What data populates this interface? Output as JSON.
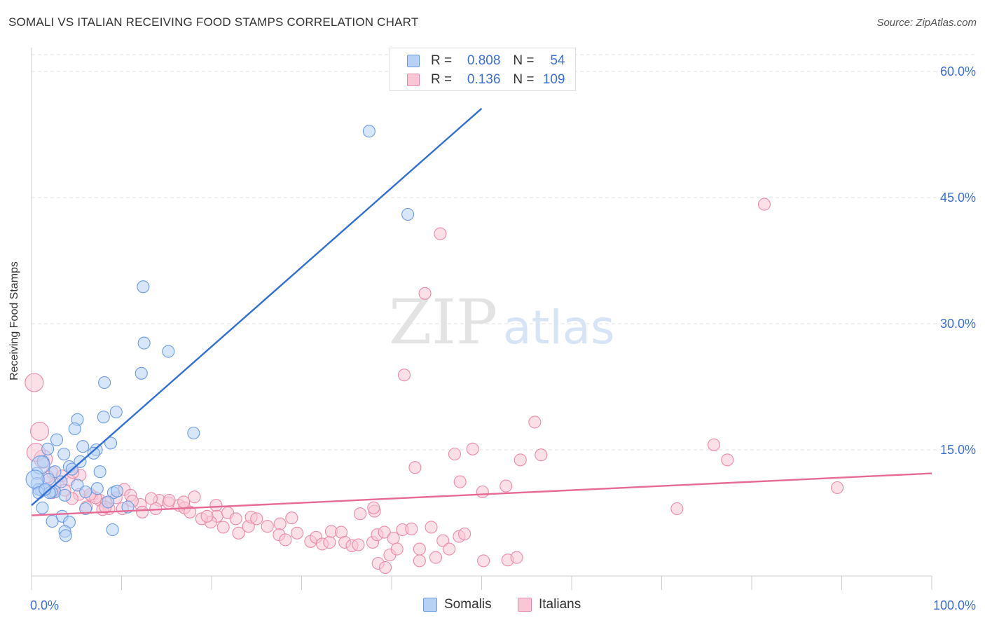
{
  "header": {
    "title": "SOMALI VS ITALIAN RECEIVING FOOD STAMPS CORRELATION CHART",
    "source": "Source: ZipAtlas.com"
  },
  "watermark": {
    "zip": "ZIP",
    "atlas": "atlas"
  },
  "legend": {
    "rows": [
      {
        "r_label": "R =",
        "r_value": "0.808",
        "n_label": "N =",
        "n_value": "54",
        "color": "#6c9be0"
      },
      {
        "r_label": "R =",
        "r_value": "0.136",
        "n_label": "N =",
        "n_value": "109",
        "color": "#ea8aa9"
      }
    ]
  },
  "bottom_legend": [
    "Somalis",
    "Italians"
  ],
  "chart_data": {
    "type": "scatter",
    "title": "SOMALI VS ITALIAN RECEIVING FOOD STAMPS CORRELATION CHART",
    "xlabel": "",
    "ylabel": "Receiving Food Stamps",
    "xlim": [
      0,
      100
    ],
    "ylim": [
      0,
      62
    ],
    "x_tick_labels": [
      "0.0%",
      "100.0%"
    ],
    "y_ticks": [
      15,
      30,
      45,
      60
    ],
    "y_tick_labels": [
      "15.0%",
      "30.0%",
      "45.0%",
      "60.0%"
    ],
    "grid": true,
    "series": [
      {
        "name": "Somalis",
        "color": "#6c9be0",
        "fill": "#b7d1f4",
        "trend": {
          "x": [
            0,
            50
          ],
          "y": [
            8.4,
            55.6
          ]
        },
        "points": [
          [
            37.5,
            52.9
          ],
          [
            41.8,
            43.0
          ],
          [
            12.4,
            34.4
          ],
          [
            12.5,
            27.7
          ],
          [
            15.2,
            26.7
          ],
          [
            12.2,
            24.1
          ],
          [
            8.1,
            23.0
          ],
          [
            9.4,
            19.5
          ],
          [
            8.0,
            18.9
          ],
          [
            5.1,
            18.6
          ],
          [
            4.8,
            17.5
          ],
          [
            18.0,
            17.0
          ],
          [
            2.8,
            16.2
          ],
          [
            1.8,
            15.1
          ],
          [
            8.8,
            15.8
          ],
          [
            5.7,
            15.4
          ],
          [
            7.2,
            15.0
          ],
          [
            6.9,
            14.6
          ],
          [
            3.6,
            14.5
          ],
          [
            5.4,
            13.6
          ],
          [
            1.3,
            13.6
          ],
          [
            7.6,
            12.4
          ],
          [
            4.2,
            13.0
          ],
          [
            2.6,
            12.4
          ],
          [
            0.6,
            12.2
          ],
          [
            1.9,
            11.5
          ],
          [
            3.3,
            11.2
          ],
          [
            5.1,
            10.8
          ],
          [
            4.5,
            12.7
          ],
          [
            0.6,
            11.0
          ],
          [
            1.1,
            10.2
          ],
          [
            2.6,
            10.0
          ],
          [
            3.7,
            9.6
          ],
          [
            6.0,
            10.0
          ],
          [
            9.1,
            9.9
          ],
          [
            9.5,
            10.1
          ],
          [
            7.3,
            10.4
          ],
          [
            0.8,
            10.3
          ],
          [
            2.2,
            10.0
          ],
          [
            8.5,
            8.8
          ],
          [
            10.7,
            8.2
          ],
          [
            6.0,
            8.0
          ],
          [
            1.2,
            8.1
          ],
          [
            3.4,
            7.1
          ],
          [
            2.3,
            6.5
          ],
          [
            4.2,
            6.4
          ],
          [
            9.0,
            5.5
          ],
          [
            3.7,
            5.3
          ],
          [
            3.8,
            4.8
          ],
          [
            1.0,
            13.2
          ],
          [
            0.4,
            11.5
          ],
          [
            0.8,
            9.9
          ],
          [
            2.0,
            9.9
          ],
          [
            1.5,
            10.3
          ]
        ]
      },
      {
        "name": "Italians",
        "color": "#ea8aa9",
        "fill": "#f9c6d6",
        "trend": {
          "x": [
            0,
            100
          ],
          "y": [
            7.2,
            12.2
          ]
        },
        "points": [
          [
            81.4,
            44.2
          ],
          [
            45.4,
            40.7
          ],
          [
            43.7,
            33.6
          ],
          [
            41.4,
            23.9
          ],
          [
            0.3,
            23.0
          ],
          [
            55.9,
            18.3
          ],
          [
            0.9,
            17.2
          ],
          [
            75.8,
            15.6
          ],
          [
            49.0,
            15.1
          ],
          [
            47.0,
            14.5
          ],
          [
            56.6,
            14.4
          ],
          [
            54.3,
            13.8
          ],
          [
            77.3,
            13.8
          ],
          [
            42.6,
            12.9
          ],
          [
            1.3,
            13.9
          ],
          [
            0.5,
            14.7
          ],
          [
            47.6,
            11.2
          ],
          [
            52.7,
            10.7
          ],
          [
            50.1,
            10.0
          ],
          [
            89.5,
            10.5
          ],
          [
            2.3,
            12.3
          ],
          [
            3.4,
            11.9
          ],
          [
            5.4,
            12.0
          ],
          [
            2.6,
            11.0
          ],
          [
            4.1,
            11.4
          ],
          [
            10.3,
            10.3
          ],
          [
            11.0,
            9.6
          ],
          [
            6.7,
            9.5
          ],
          [
            7.6,
            9.0
          ],
          [
            14.2,
            9.0
          ],
          [
            15.2,
            8.7
          ],
          [
            16.4,
            8.4
          ],
          [
            17.0,
            8.1
          ],
          [
            18.1,
            9.4
          ],
          [
            20.5,
            8.4
          ],
          [
            20.6,
            7.1
          ],
          [
            21.8,
            7.5
          ],
          [
            22.7,
            6.8
          ],
          [
            24.1,
            5.9
          ],
          [
            24.4,
            7.0
          ],
          [
            25.0,
            6.8
          ],
          [
            26.2,
            5.9
          ],
          [
            27.6,
            6.2
          ],
          [
            27.5,
            4.9
          ],
          [
            28.2,
            4.3
          ],
          [
            29.5,
            5.1
          ],
          [
            31.0,
            4.1
          ],
          [
            31.6,
            4.6
          ],
          [
            32.3,
            3.8
          ],
          [
            33.1,
            4.0
          ],
          [
            33.3,
            5.3
          ],
          [
            34.4,
            5.2
          ],
          [
            34.8,
            4.0
          ],
          [
            35.6,
            3.6
          ],
          [
            36.3,
            3.7
          ],
          [
            37.9,
            4.0
          ],
          [
            38.4,
            4.9
          ],
          [
            39.2,
            5.2
          ],
          [
            40.2,
            4.5
          ],
          [
            41.2,
            5.5
          ],
          [
            42.2,
            5.6
          ],
          [
            43.1,
            3.2
          ],
          [
            44.4,
            5.8
          ],
          [
            45.7,
            4.2
          ],
          [
            46.4,
            3.2
          ],
          [
            47.5,
            4.7
          ],
          [
            48.1,
            5.0
          ],
          [
            38.1,
            7.7
          ],
          [
            38.0,
            8.1
          ],
          [
            38.5,
            1.5
          ],
          [
            39.3,
            1.0
          ],
          [
            39.8,
            2.5
          ],
          [
            43.1,
            1.8
          ],
          [
            50.2,
            1.8
          ],
          [
            52.9,
            1.9
          ],
          [
            53.9,
            2.2
          ],
          [
            44.9,
            2.2
          ],
          [
            40.6,
            3.2
          ],
          [
            71.7,
            8.0
          ],
          [
            36.5,
            7.4
          ],
          [
            28.9,
            6.9
          ],
          [
            23.0,
            5.1
          ],
          [
            21.3,
            5.8
          ],
          [
            19.9,
            6.4
          ],
          [
            18.9,
            6.8
          ],
          [
            19.5,
            7.1
          ],
          [
            17.6,
            7.6
          ],
          [
            16.9,
            8.8
          ],
          [
            15.3,
            9.0
          ],
          [
            13.3,
            9.2
          ],
          [
            12.1,
            8.5
          ],
          [
            13.8,
            8.0
          ],
          [
            12.3,
            7.6
          ],
          [
            11.2,
            8.9
          ],
          [
            10.1,
            8.0
          ],
          [
            9.4,
            9.3
          ],
          [
            8.3,
            8.7
          ],
          [
            8.6,
            8.0
          ],
          [
            7.9,
            7.9
          ],
          [
            6.1,
            8.2
          ],
          [
            5.3,
            9.7
          ],
          [
            4.5,
            9.2
          ],
          [
            3.7,
            10.2
          ],
          [
            2.3,
            9.9
          ],
          [
            7.1,
            9.3
          ],
          [
            8.2,
            8.2
          ],
          [
            6.5,
            9.7
          ],
          [
            1.8,
            11.8
          ],
          [
            4.6,
            12.3
          ]
        ]
      }
    ]
  }
}
